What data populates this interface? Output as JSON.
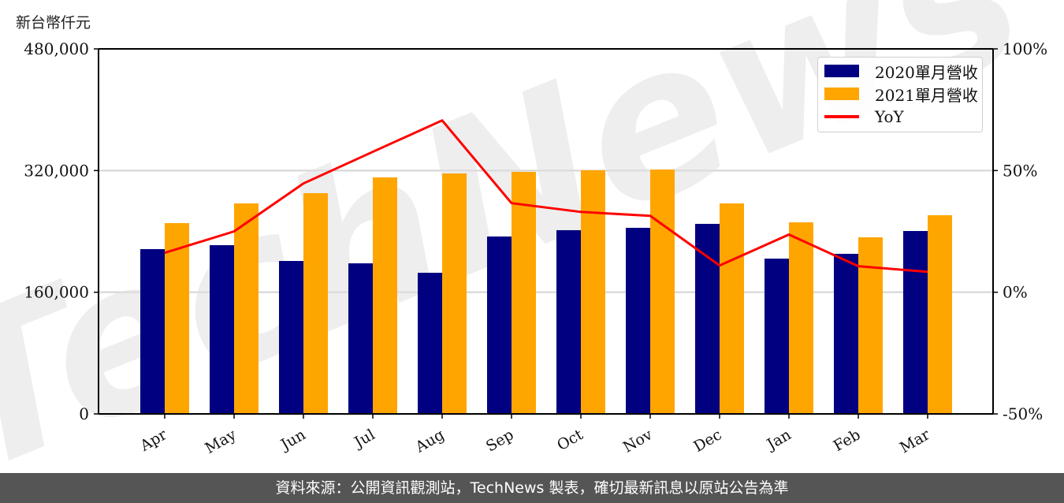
{
  "unit_label": "新台幣仟元",
  "legend": {
    "items": [
      {
        "label": "2020單月營收",
        "color": "#000080",
        "kind": "bar"
      },
      {
        "label": "2021單月營收",
        "color": "#FFA500",
        "kind": "bar"
      },
      {
        "label": "YoY",
        "color": "#FF0000",
        "kind": "line"
      }
    ]
  },
  "watermark": "TechNews",
  "footer": {
    "text": "資料來源：公開資訊觀測站，TechNews 製表，確切最新訊息以原站公告為準"
  },
  "colors": {
    "series_2020": "#000080",
    "series_2021": "#FFA500",
    "yoy": "#FF0000",
    "grid": "#d3d3d3",
    "footer_bg": "#555555"
  },
  "chart_data": {
    "type": "bar",
    "title": "",
    "xlabel": "",
    "ylabel": "新台幣仟元",
    "categories": [
      "Apr",
      "May",
      "Jun",
      "Jul",
      "Aug",
      "Sep",
      "Oct",
      "Nov",
      "Dec",
      "Jan",
      "Feb",
      "Mar"
    ],
    "series": [
      {
        "name": "2020單月營收",
        "type": "bar",
        "axis": "left",
        "values": [
          216700,
          221900,
          201100,
          198000,
          185600,
          233300,
          241600,
          244700,
          249900,
          204200,
          210500,
          240500
        ]
      },
      {
        "name": "2021單月營收",
        "type": "bar",
        "axis": "left",
        "values": [
          250900,
          276800,
          290300,
          311000,
          316200,
          318300,
          320400,
          321400,
          276800,
          251900,
          232200,
          261300
        ]
      },
      {
        "name": "YoY",
        "type": "line",
        "axis": "right",
        "unit": "%",
        "values": [
          16.2,
          25.0,
          44.7,
          57.7,
          70.6,
          36.6,
          33.0,
          31.4,
          11.0,
          23.7,
          10.7,
          8.4
        ]
      }
    ],
    "ylim": [
      0,
      480000
    ],
    "yticks": [
      0,
      160000,
      320000,
      480000
    ],
    "ytick_labels": [
      "0",
      "160,000",
      "320,000",
      "480,000"
    ],
    "y2lim": [
      -50,
      100
    ],
    "y2ticks": [
      -50,
      0,
      50,
      100
    ],
    "y2tick_labels": [
      "-50%",
      "0%",
      "50%",
      "100%"
    ],
    "grid": "horizontal",
    "legend_position": "upper right",
    "xtick_rotation": 30
  }
}
